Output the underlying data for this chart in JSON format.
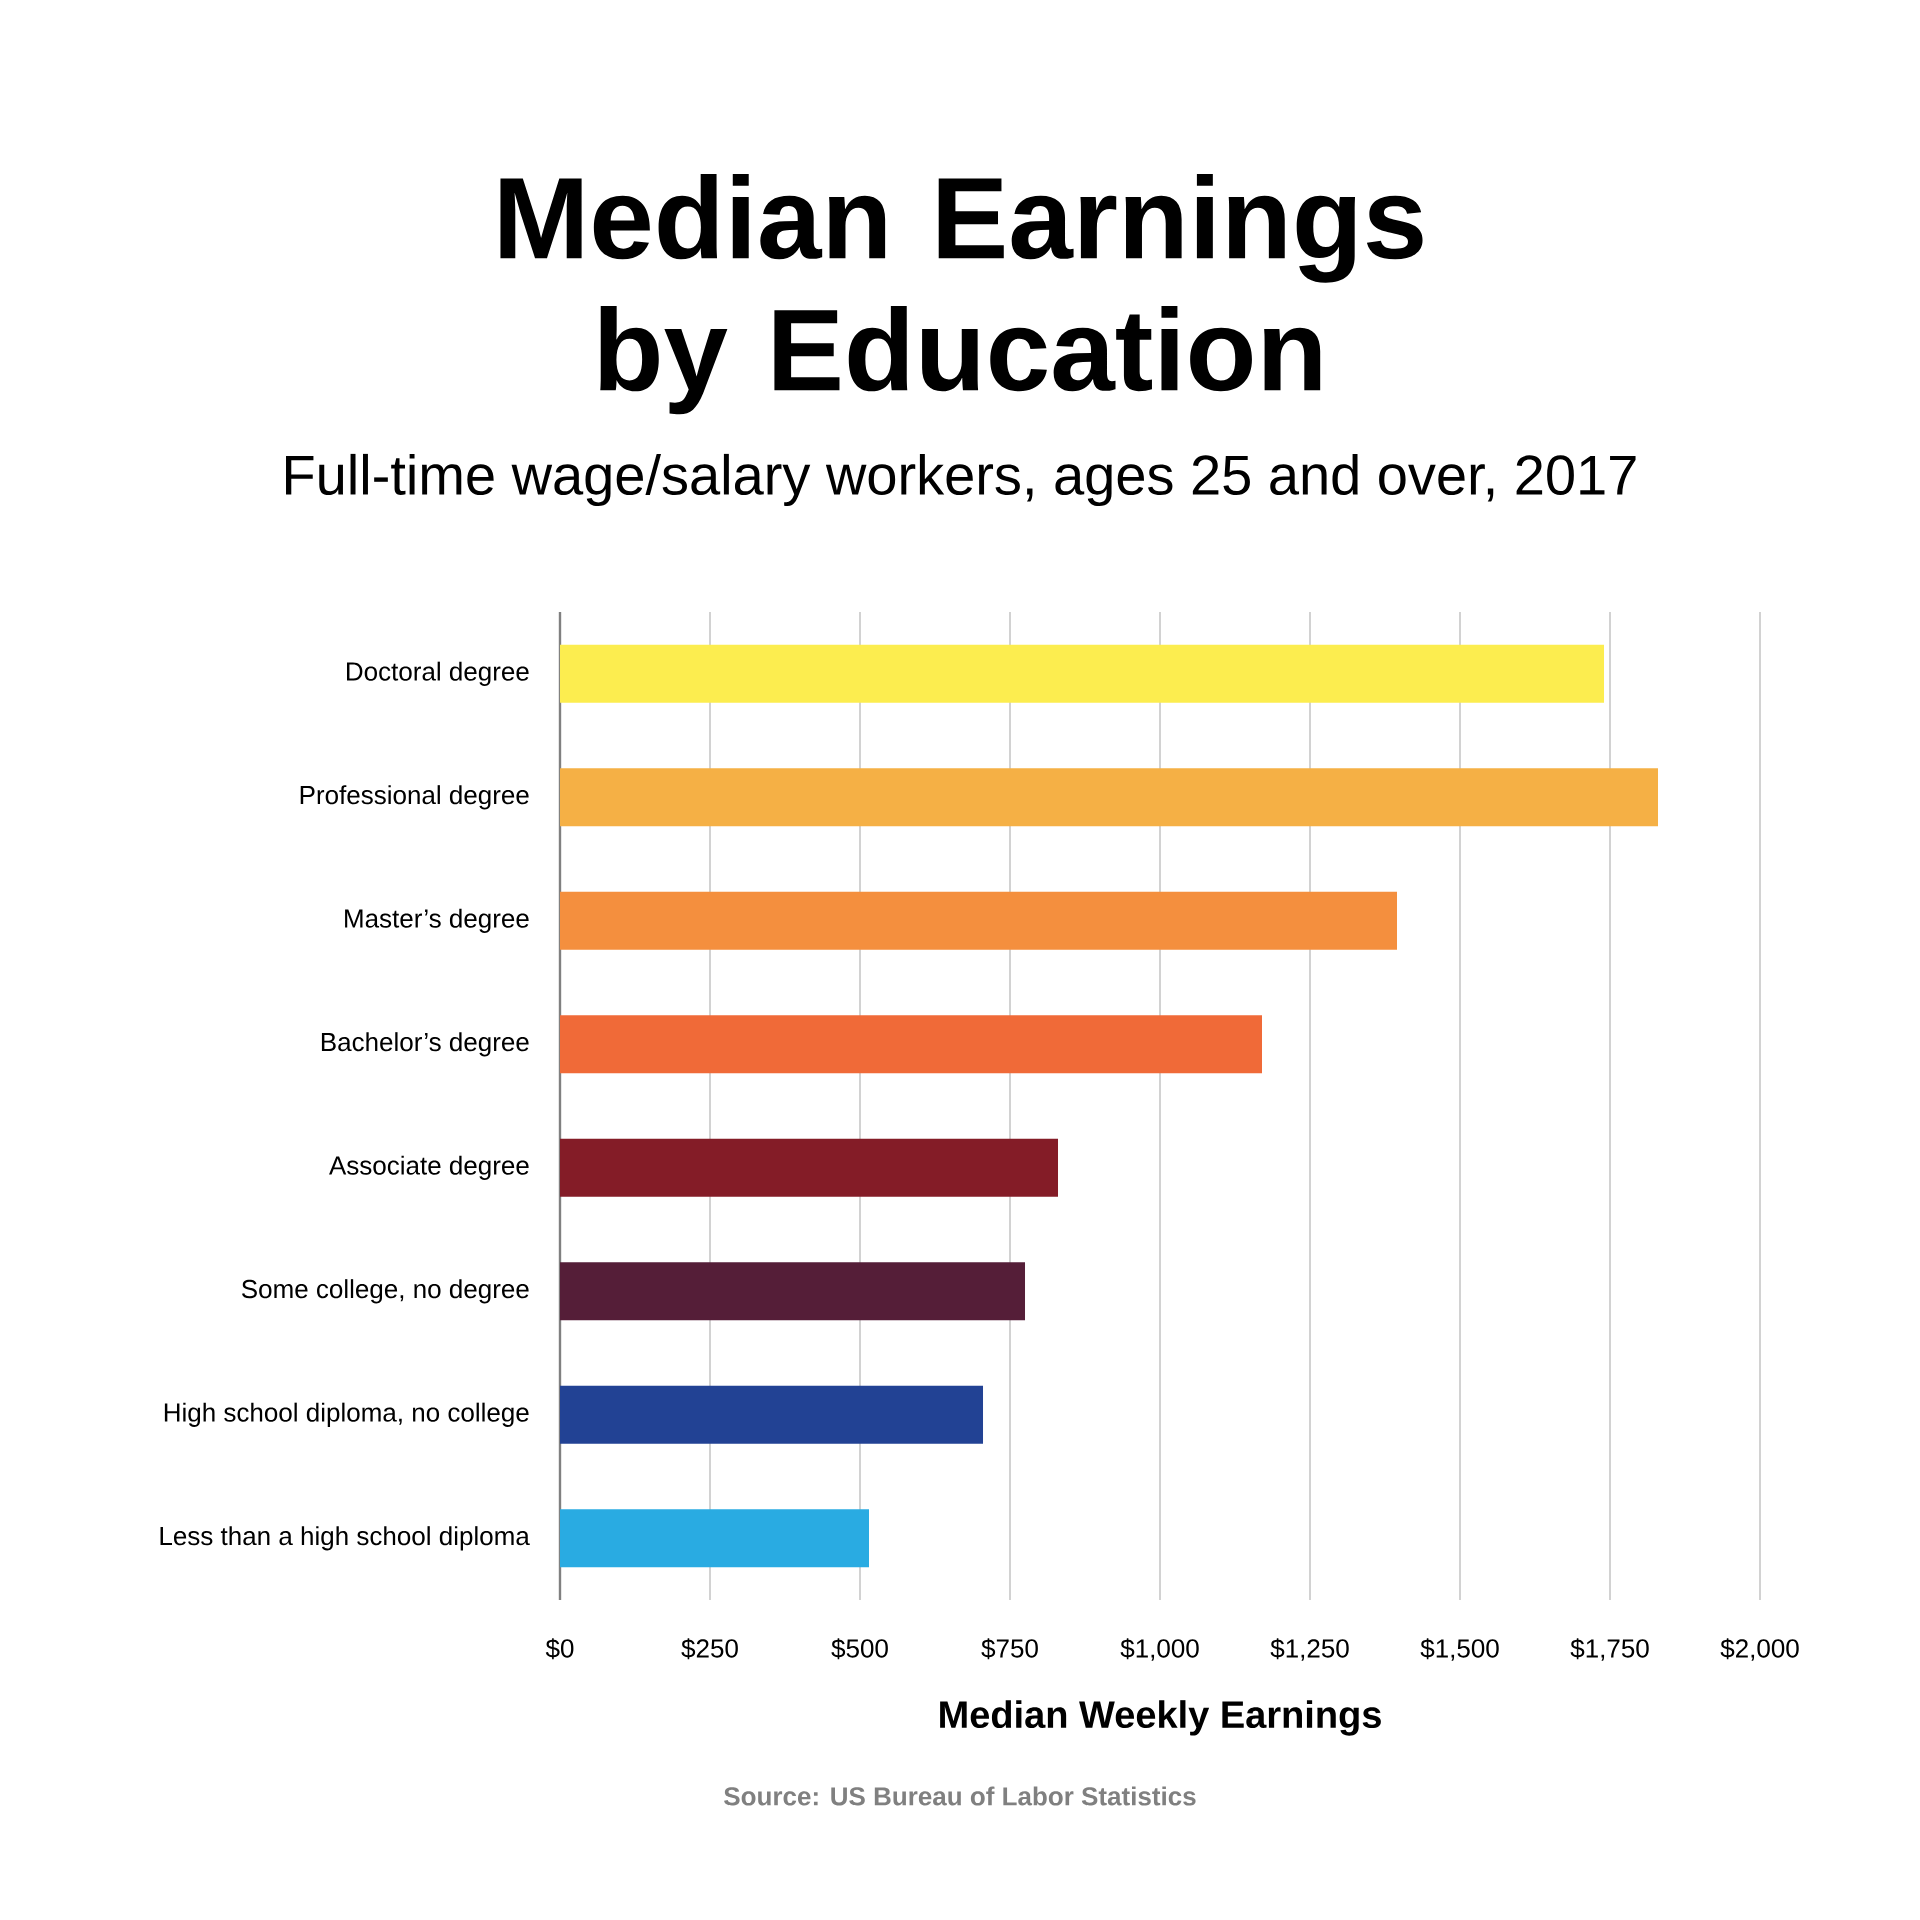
{
  "chart_data": {
    "type": "bar",
    "orientation": "horizontal",
    "title": "Median Earnings by Education",
    "subtitle": "Full-time wage/salary workers, ages 25 and over, 2017",
    "xlabel": "Median Weekly Earnings",
    "categories": [
      "Doctoral degree",
      "Professional degree",
      "Master’s degree",
      "Bachelor’s degree",
      "Associate degree",
      "Some college, no degree",
      "High school diploma, no college",
      "Less than a high school diploma"
    ],
    "values": [
      1740,
      1830,
      1395,
      1170,
      830,
      775,
      705,
      515
    ],
    "colors": [
      "#fced4f",
      "#f5b045",
      "#f48f3e",
      "#f06a38",
      "#841c27",
      "#551e38",
      "#224294",
      "#29abe2"
    ],
    "xlim": [
      0,
      2000
    ],
    "xticks": [
      {
        "value": 0,
        "label": "$0"
      },
      {
        "value": 250,
        "label": "$250"
      },
      {
        "value": 500,
        "label": "$500"
      },
      {
        "value": 750,
        "label": "$750"
      },
      {
        "value": 1000,
        "label": "$1,000"
      },
      {
        "value": 1250,
        "label": "$1,250"
      },
      {
        "value": 1500,
        "label": "$1,500"
      },
      {
        "value": 1750,
        "label": "$1,750"
      },
      {
        "value": 2000,
        "label": "$2,000"
      }
    ],
    "grid": "x",
    "annotations": [
      "Source: US Bureau of Labor Statistics"
    ]
  }
}
